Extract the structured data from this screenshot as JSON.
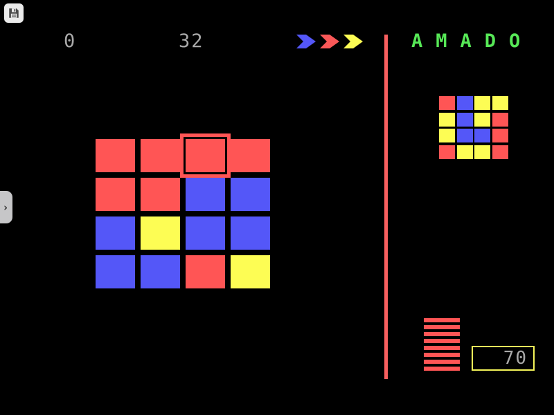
{
  "palette": {
    "red": "#ff5555",
    "blue": "#5457f8",
    "yellow": "#fdfd54",
    "green_title": "#57e857",
    "gray_text": "#a9a9a9",
    "divider_red": "#f75f5f",
    "score_border_yellow": "#f5f55a",
    "button_bg": "#ebebeb",
    "tab_bg": "#c6c6c8",
    "background": "#000000"
  },
  "toolbar": {
    "save_icon": "floppy-disk-icon"
  },
  "side_tab": {
    "chevron": "›"
  },
  "hud": {
    "level": "0",
    "moves": "32",
    "arrows": [
      {
        "name": "blue-arrow",
        "color": "#5457f8"
      },
      {
        "name": "red-arrow",
        "color": "#fa5858"
      },
      {
        "name": "yellow-arrow",
        "color": "#fdfd54"
      }
    ]
  },
  "title": {
    "text": "AMADO"
  },
  "board": {
    "rows": 4,
    "cols": 4,
    "selected": {
      "row": 0,
      "col": 2
    },
    "cells": [
      [
        "red",
        "red",
        "red",
        "red"
      ],
      [
        "red",
        "red",
        "blue",
        "blue"
      ],
      [
        "blue",
        "yellow",
        "blue",
        "blue"
      ],
      [
        "blue",
        "blue",
        "red",
        "yellow"
      ]
    ]
  },
  "target": {
    "rows": 4,
    "cols": 4,
    "cells": [
      [
        "red",
        "blue",
        "yellow",
        "yellow"
      ],
      [
        "yellow",
        "blue",
        "yellow",
        "red"
      ],
      [
        "yellow",
        "blue",
        "blue",
        "red"
      ],
      [
        "red",
        "yellow",
        "yellow",
        "red"
      ]
    ]
  },
  "gauge": {
    "stripes": 8,
    "color": "red"
  },
  "score_box": {
    "value": "70"
  }
}
